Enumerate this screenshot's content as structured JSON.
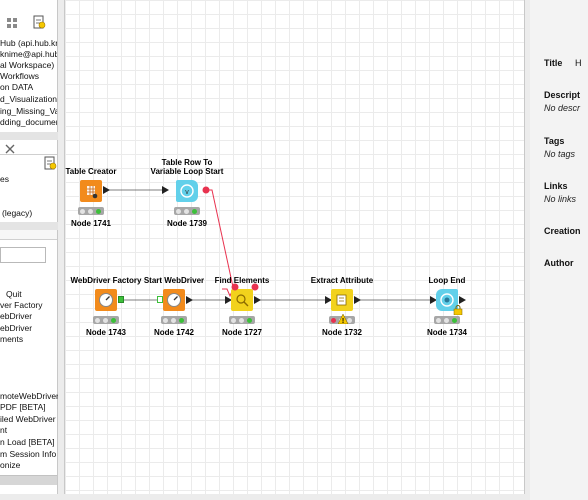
{
  "explorer": {
    "items": [
      "Hub (api.hub.kn",
      "knime@api.hub",
      "al Workspace)",
      "Workflows",
      "on DATA",
      "d_Visualization",
      "ing_Missing_Va",
      "dding_documer"
    ]
  },
  "repo": {
    "items": [
      "es",
      "(legacy)"
    ]
  },
  "nodes_panel": {
    "search_value": "",
    "items": [
      "Quit",
      "ver Factory",
      "ebDriver",
      "ebDriver",
      "ments",
      "moteWebDriver",
      "PDF [BETA]",
      "iled WebDriver",
      "nt",
      "n Load [BETA]",
      "m Session Info",
      "onize"
    ]
  },
  "workflow": {
    "nodes": [
      {
        "key": "table-creator",
        "title": "Table Creator",
        "label": "Node 1741"
      },
      {
        "key": "loop-start",
        "title_line1": "Table Row To",
        "title_line2": "Variable Loop Start",
        "label": "Node 1739"
      },
      {
        "key": "webdriver-factory",
        "title": "WebDriver Factory",
        "label": "Node 1743"
      },
      {
        "key": "start-webdriver",
        "title": "Start WebDriver",
        "label": "Node 1742"
      },
      {
        "key": "find-elements",
        "title": "Find Elements",
        "label": "Node 1727"
      },
      {
        "key": "extract-attribute",
        "title": "Extract Attribute",
        "label": "Node 1732"
      },
      {
        "key": "loop-end",
        "title": "Loop End",
        "label": "Node 1734"
      }
    ]
  },
  "description": {
    "title_label": "Title",
    "title_value": "H",
    "descr_label": "Descript",
    "descr_value": "No descr",
    "tags_label": "Tags",
    "tags_value": "No tags",
    "links_label": "Links",
    "links_value": "No links",
    "creation_label": "Creation",
    "author_label": "Author"
  },
  "colors": {
    "source_node": "#f28b1c",
    "manipulator_node": "#f2d21c",
    "loop_node": "#62d0ea",
    "variable_port": "#e8324f",
    "status_green": "#3cc03a",
    "status_red": "#e8324f",
    "status_yellow": "#f5c800"
  }
}
